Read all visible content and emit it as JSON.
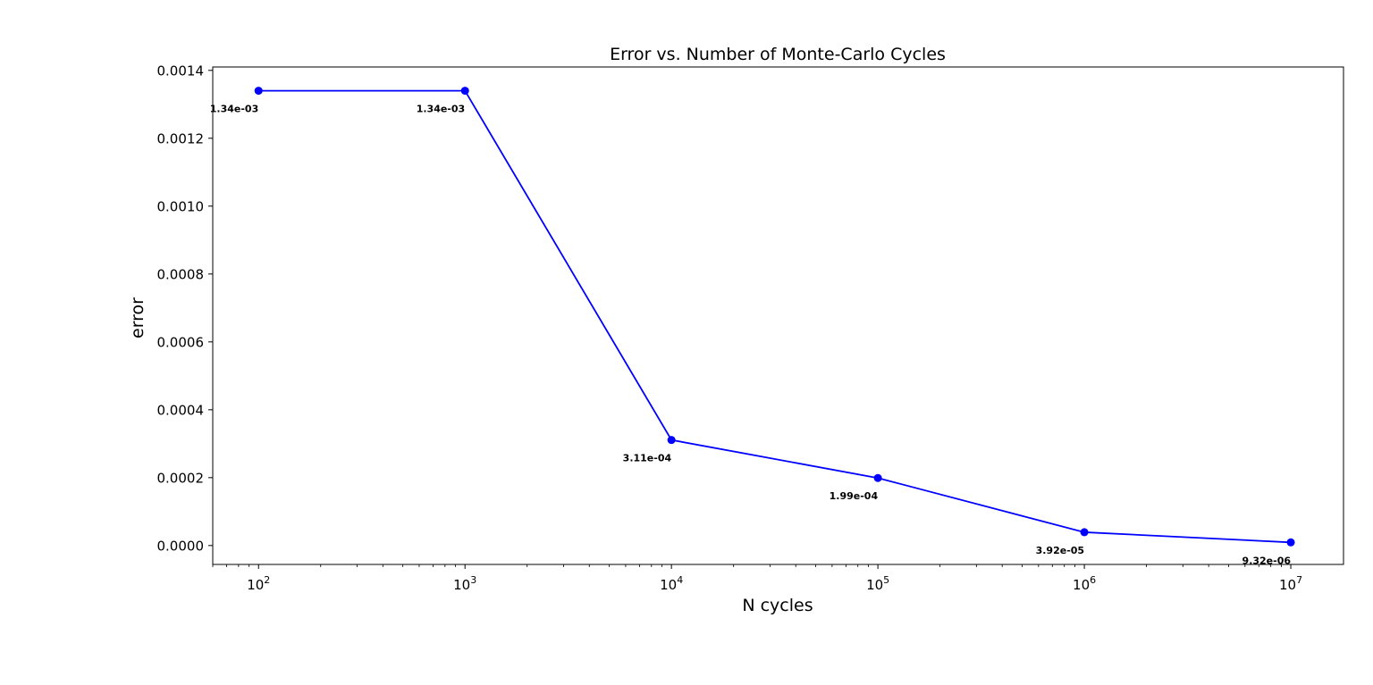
{
  "chart_data": {
    "type": "line",
    "title": "Error vs. Number of Monte-Carlo Cycles",
    "xlabel": "N cycles",
    "ylabel": "error",
    "xscale": "log",
    "x": [
      100,
      1000,
      10000,
      100000,
      1000000,
      10000000
    ],
    "series": [
      {
        "values": [
          0.00134,
          0.00134,
          0.000311,
          0.000199,
          3.92e-05,
          9.32e-06
        ],
        "color": "#0000ff",
        "marker": "circle"
      }
    ],
    "data_labels": [
      "1.34e-03",
      "1.34e-03",
      "3.11e-04",
      "1.99e-04",
      "3.92e-05",
      "9.32e-06"
    ],
    "xlim": [
      60,
      18000000
    ],
    "ylim": [
      -5.57e-05,
      0.00141
    ],
    "x_ticks": [
      {
        "value": 100,
        "base": "10",
        "exp": "2"
      },
      {
        "value": 1000,
        "base": "10",
        "exp": "3"
      },
      {
        "value": 10000,
        "base": "10",
        "exp": "4"
      },
      {
        "value": 100000,
        "base": "10",
        "exp": "5"
      },
      {
        "value": 1000000,
        "base": "10",
        "exp": "6"
      },
      {
        "value": 10000000,
        "base": "10",
        "exp": "7"
      }
    ],
    "y_ticks": [
      {
        "value": 0.0,
        "label": "0.0000"
      },
      {
        "value": 0.0002,
        "label": "0.0002"
      },
      {
        "value": 0.0004,
        "label": "0.0004"
      },
      {
        "value": 0.0006,
        "label": "0.0006"
      },
      {
        "value": 0.0008,
        "label": "0.0008"
      },
      {
        "value": 0.001,
        "label": "0.0010"
      },
      {
        "value": 0.0012,
        "label": "0.0012"
      },
      {
        "value": 0.0014,
        "label": "0.0014"
      }
    ],
    "grid": false,
    "legend": "none"
  }
}
